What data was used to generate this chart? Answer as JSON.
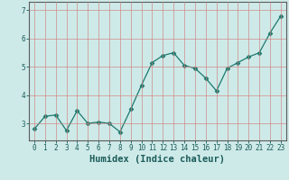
{
  "x": [
    0,
    1,
    2,
    3,
    4,
    5,
    6,
    7,
    8,
    9,
    10,
    11,
    12,
    13,
    14,
    15,
    16,
    17,
    18,
    19,
    20,
    21,
    22,
    23
  ],
  "y": [
    2.8,
    3.25,
    3.3,
    2.75,
    3.45,
    3.0,
    3.05,
    3.0,
    2.7,
    3.5,
    4.35,
    5.15,
    5.4,
    5.5,
    5.05,
    4.95,
    4.6,
    4.15,
    4.95,
    5.15,
    5.35,
    5.5,
    6.2,
    6.8
  ],
  "line_color": "#1a7a6e",
  "marker": "D",
  "marker_size": 2.5,
  "bg_color": "#ceeae8",
  "grid_color": "#d08080",
  "xlabel": "Humidex (Indice chaleur)",
  "xlim": [
    -0.5,
    23.5
  ],
  "ylim": [
    2.4,
    7.3
  ],
  "yticks": [
    3,
    4,
    5,
    6,
    7
  ],
  "xticks": [
    0,
    1,
    2,
    3,
    4,
    5,
    6,
    7,
    8,
    9,
    10,
    11,
    12,
    13,
    14,
    15,
    16,
    17,
    18,
    19,
    20,
    21,
    22,
    23
  ],
  "tick_fontsize": 5.5,
  "xlabel_fontsize": 7.5,
  "tick_color": "#1a5c5a",
  "axes_color": "#1a5c5a",
  "spine_color": "#5a5a5a"
}
